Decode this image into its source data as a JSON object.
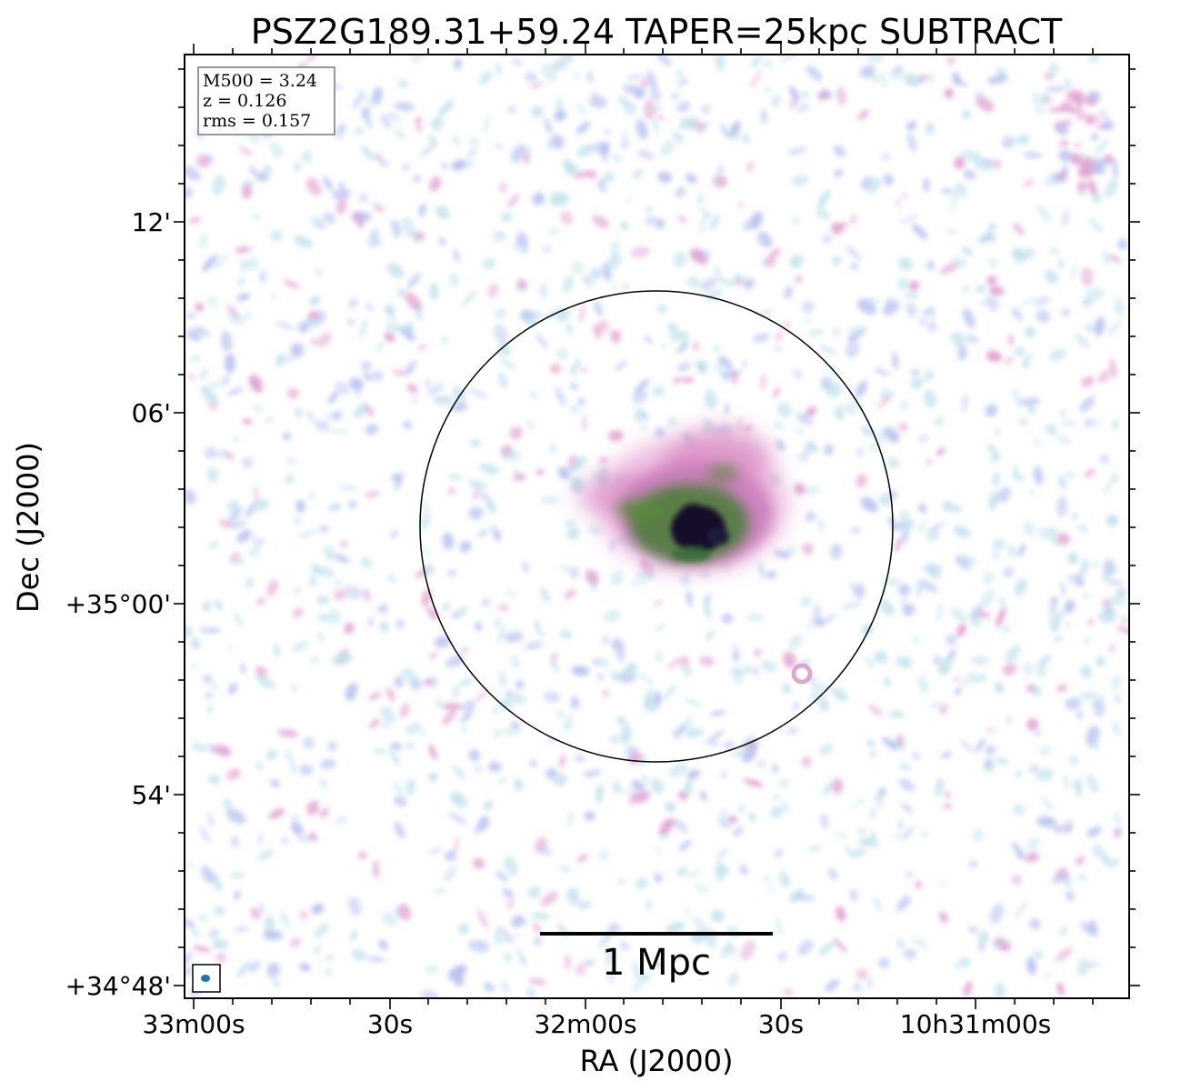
{
  "title": "PSZ2G189.31+59.24 TAPER=25kpc SUBTRACT",
  "info_box": {
    "lines": [
      "M500 = 3.24",
      "z = 0.126",
      "rms = 0.157"
    ]
  },
  "axes": {
    "xlabel": "RA (J2000)",
    "ylabel": "Dec (J2000)",
    "x_ticks": [
      "33m00s",
      "30s",
      "32m00s",
      "30s",
      "10h31m00s"
    ],
    "y_ticks": [
      "12'",
      "06'",
      "+35°00'",
      "54'",
      "+34°48'"
    ]
  },
  "scale_bar": {
    "label": "1 Mpc"
  },
  "colors": {
    "noise_light": "#b7dde8",
    "noise_blue": "#aab4ec",
    "noise_pink": "#d98bc4",
    "emission_green": "#3d6e3a",
    "emission_dark": "#14102a",
    "beam": "#1f77b4"
  }
}
